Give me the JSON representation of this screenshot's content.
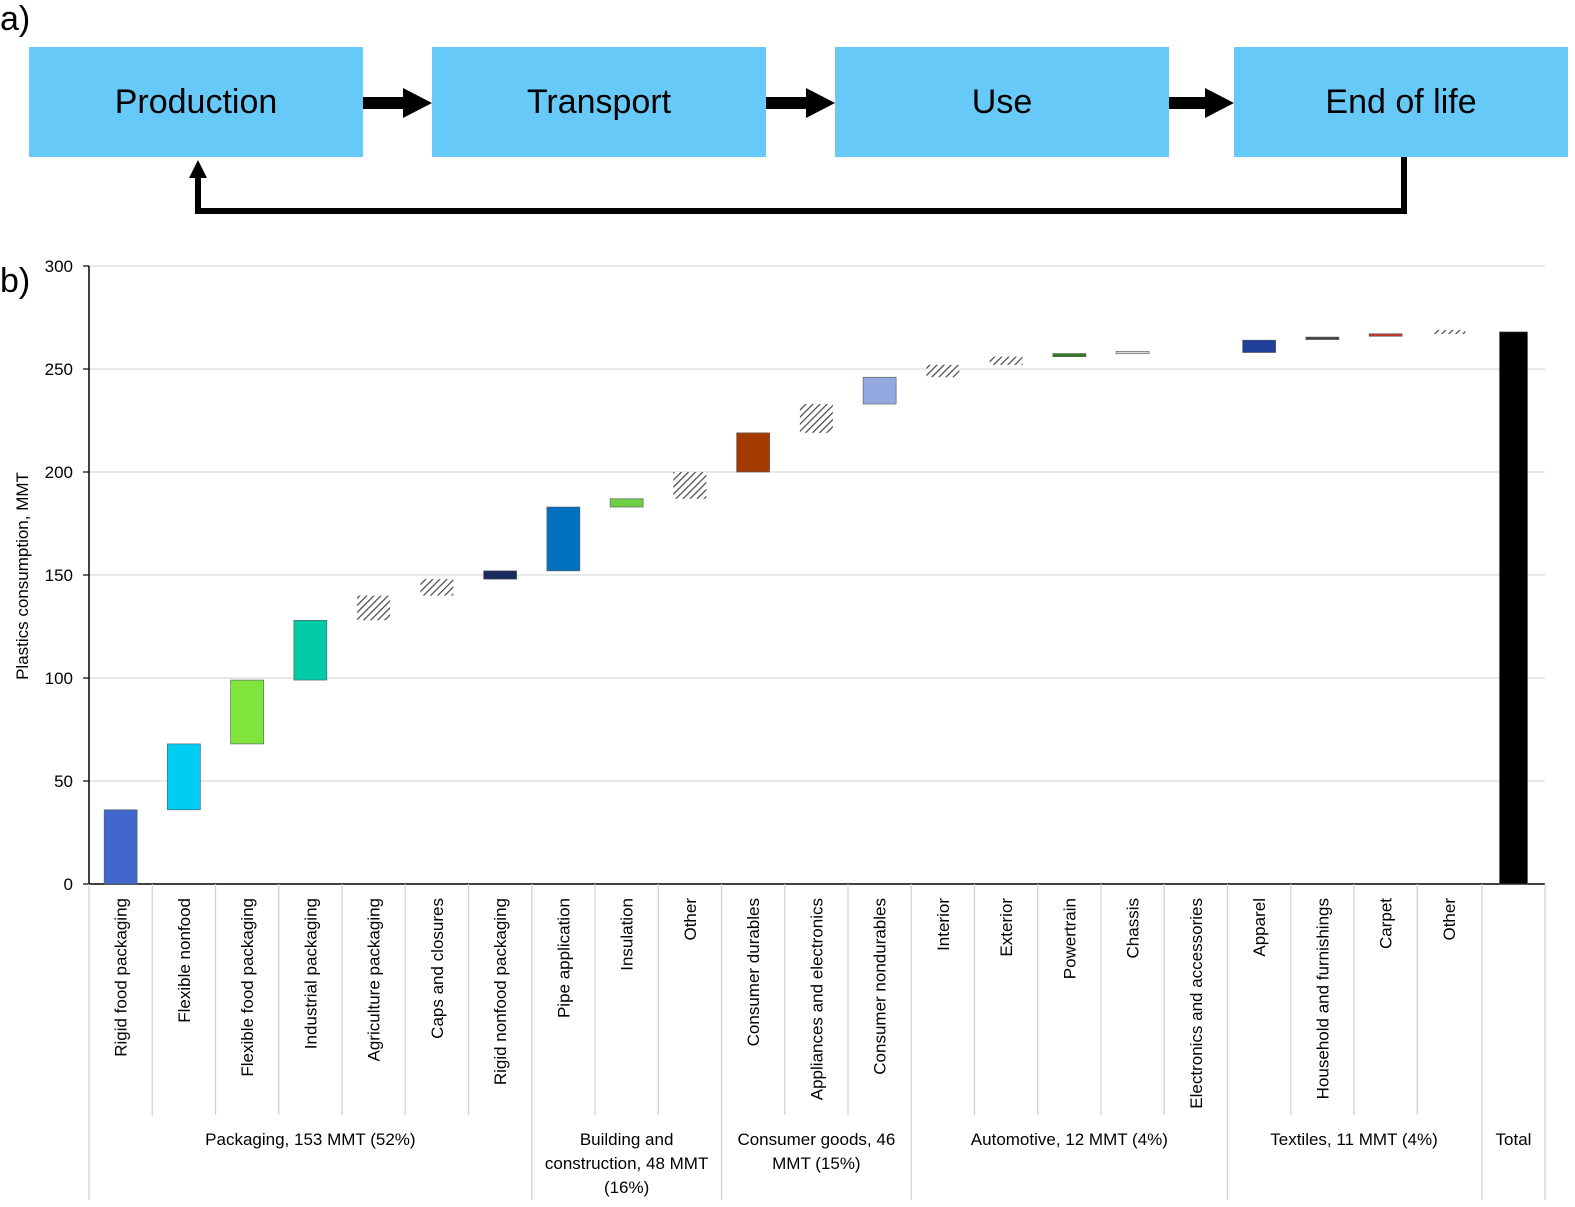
{
  "panel_a": {
    "label": "a)",
    "stages": [
      "Production",
      "Transport",
      "Use",
      "End of life"
    ]
  },
  "panel_b": {
    "label": "b)"
  },
  "chart_data": {
    "type": "waterfall",
    "ylabel": "Plastics consumption, MMT",
    "ylim": [
      0,
      300
    ],
    "yticks": [
      0,
      50,
      100,
      150,
      200,
      250,
      300
    ],
    "grid": true,
    "bars": [
      {
        "category": "Rigid food packaging",
        "start": 0,
        "end": 36,
        "color": "#4167cc",
        "pattern": false
      },
      {
        "category": "Flexible nonfood",
        "start": 36,
        "end": 68,
        "color": "#00cdf2",
        "pattern": false
      },
      {
        "category": "Flexible food packaging",
        "start": 68,
        "end": 99,
        "color": "#80e63e",
        "pattern": false
      },
      {
        "category": "Industrial packaging",
        "start": 99,
        "end": 128,
        "color": "#00cba6",
        "pattern": false
      },
      {
        "category": "Agriculture packaging",
        "start": 128,
        "end": 140,
        "color": "#555555",
        "pattern": true
      },
      {
        "category": "Caps and closures",
        "start": 140,
        "end": 148,
        "color": "#555555",
        "pattern": true
      },
      {
        "category": "Rigid nonfood packaging",
        "start": 148,
        "end": 152,
        "color": "#1a2a5c",
        "pattern": false
      },
      {
        "category": "Pipe application",
        "start": 152,
        "end": 183,
        "color": "#0070c0",
        "pattern": false
      },
      {
        "category": "Insulation",
        "start": 183,
        "end": 187,
        "color": "#6dcf45",
        "pattern": false
      },
      {
        "category": "Other",
        "start": 187,
        "end": 200,
        "color": "#555555",
        "pattern": true
      },
      {
        "category": "Consumer durables",
        "start": 200,
        "end": 219,
        "color": "#a33a00",
        "pattern": false
      },
      {
        "category": "Appliances and electronics",
        "start": 219,
        "end": 233,
        "color": "#555555",
        "pattern": true
      },
      {
        "category": "Consumer nondurables",
        "start": 233,
        "end": 246,
        "color": "#94a9df",
        "pattern": false
      },
      {
        "category": "Interior",
        "start": 246,
        "end": 252,
        "color": "#555555",
        "pattern": true
      },
      {
        "category": "Exterior",
        "start": 252,
        "end": 256,
        "color": "#555555",
        "pattern": true
      },
      {
        "category": "Powertrain",
        "start": 256,
        "end": 257.5,
        "color": "#2e7d1e",
        "pattern": false
      },
      {
        "category": "Chassis",
        "start": 257.5,
        "end": 258.5,
        "color": "#d9d9d9",
        "pattern": false
      },
      {
        "category": "Electronics and accessories",
        "start": 258.5,
        "end": 258.5,
        "color": "#ffffff",
        "pattern": false
      },
      {
        "category": "Apparel",
        "start": 258,
        "end": 264,
        "color": "#1f3f99",
        "pattern": false
      },
      {
        "category": "Household and furnishings",
        "start": 264.5,
        "end": 265.3,
        "color": "#444444",
        "pattern": false
      },
      {
        "category": "Carpet",
        "start": 266,
        "end": 267,
        "color": "#c0392b",
        "pattern": false
      },
      {
        "category": "Other",
        "start": 267,
        "end": 269,
        "color": "#555555",
        "pattern": true
      },
      {
        "category": "Total",
        "start": 0,
        "end": 268,
        "color": "#000000",
        "pattern": false,
        "unlabeled": true
      }
    ],
    "groups": [
      {
        "label": "Packaging, 153 MMT (52%)",
        "from": 0,
        "to": 6
      },
      {
        "label": "Building and construction, 48 MMT (16%)",
        "from": 7,
        "to": 9
      },
      {
        "label": "Consumer goods, 46 MMT (15%)",
        "from": 10,
        "to": 12
      },
      {
        "label": "Automotive, 12 MMT (4%)",
        "from": 13,
        "to": 17
      },
      {
        "label": "Textiles, 11 MMT (4%)",
        "from": 18,
        "to": 21
      },
      {
        "label": "Total",
        "from": 22,
        "to": 22
      }
    ]
  }
}
